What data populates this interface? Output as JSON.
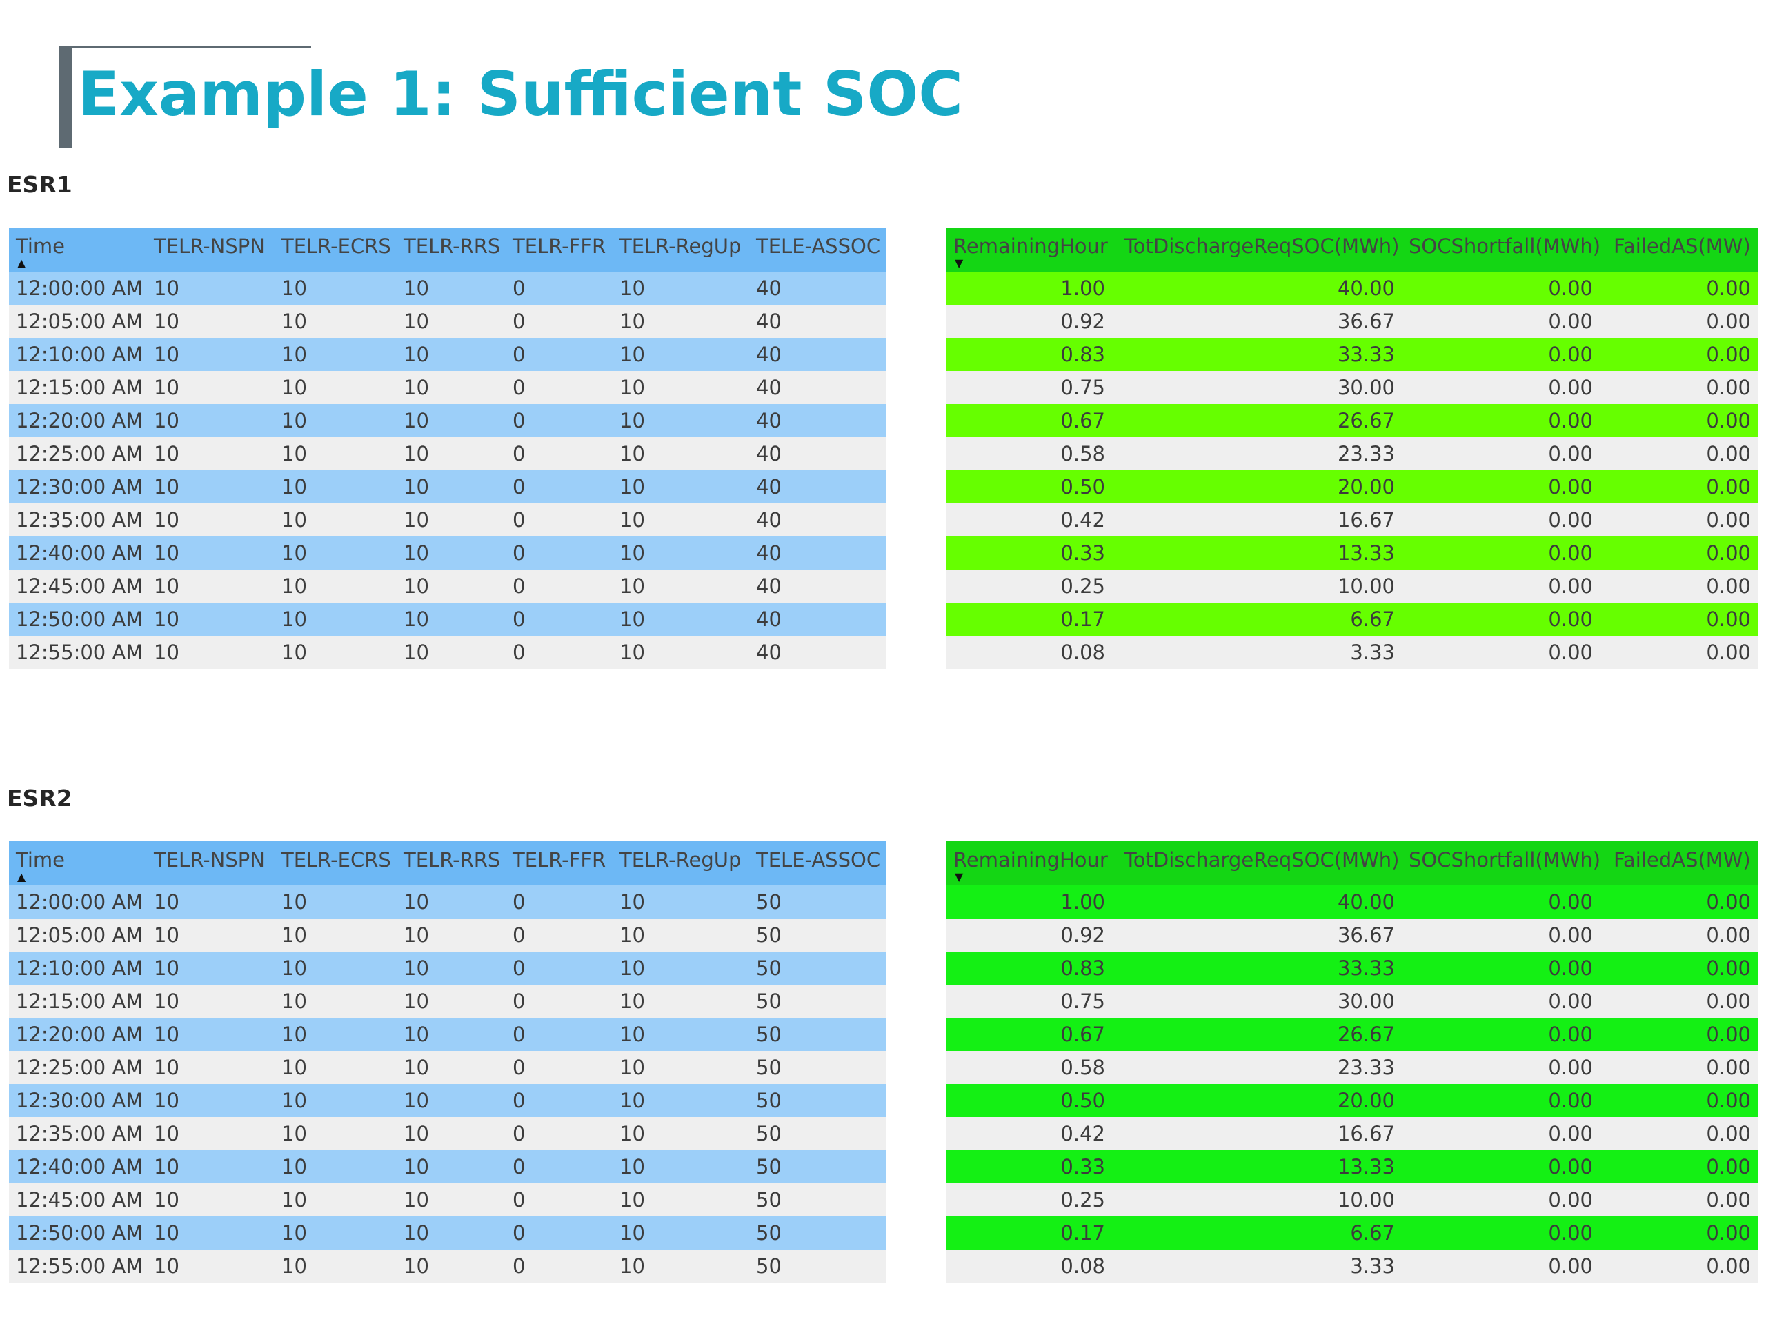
{
  "title": "Example 1: Sufficient SOC",
  "colors": {
    "title": "#17a9c6",
    "left_header": "#6db8f5",
    "left_alt_row": "#9ccff9",
    "plain_row": "#efefef",
    "right_header": "#14d614",
    "esr1_alt_row": "#66ff00",
    "esr2_alt_row": "#14f014"
  },
  "left_columns": [
    "Time",
    "TELR-NSPN",
    "TELR-ECRS",
    "TELR-RRS",
    "TELR-FFR",
    "TELR-RegUp",
    "TELE-ASSOC"
  ],
  "right_columns": [
    "RemainingHour",
    "TotDischargeReqSOC(MWh)",
    "SOCShortfall(MWh)",
    "FailedAS(MW)"
  ],
  "sections": [
    {
      "label": "ESR1",
      "left_rows": [
        [
          "12:00:00 AM",
          "10",
          "10",
          "10",
          "0",
          "10",
          "40"
        ],
        [
          "12:05:00 AM",
          "10",
          "10",
          "10",
          "0",
          "10",
          "40"
        ],
        [
          "12:10:00 AM",
          "10",
          "10",
          "10",
          "0",
          "10",
          "40"
        ],
        [
          "12:15:00 AM",
          "10",
          "10",
          "10",
          "0",
          "10",
          "40"
        ],
        [
          "12:20:00 AM",
          "10",
          "10",
          "10",
          "0",
          "10",
          "40"
        ],
        [
          "12:25:00 AM",
          "10",
          "10",
          "10",
          "0",
          "10",
          "40"
        ],
        [
          "12:30:00 AM",
          "10",
          "10",
          "10",
          "0",
          "10",
          "40"
        ],
        [
          "12:35:00 AM",
          "10",
          "10",
          "10",
          "0",
          "10",
          "40"
        ],
        [
          "12:40:00 AM",
          "10",
          "10",
          "10",
          "0",
          "10",
          "40"
        ],
        [
          "12:45:00 AM",
          "10",
          "10",
          "10",
          "0",
          "10",
          "40"
        ],
        [
          "12:50:00 AM",
          "10",
          "10",
          "10",
          "0",
          "10",
          "40"
        ],
        [
          "12:55:00 AM",
          "10",
          "10",
          "10",
          "0",
          "10",
          "40"
        ]
      ],
      "right_rows": [
        [
          "1.00",
          "40.00",
          "0.00",
          "0.00"
        ],
        [
          "0.92",
          "36.67",
          "0.00",
          "0.00"
        ],
        [
          "0.83",
          "33.33",
          "0.00",
          "0.00"
        ],
        [
          "0.75",
          "30.00",
          "0.00",
          "0.00"
        ],
        [
          "0.67",
          "26.67",
          "0.00",
          "0.00"
        ],
        [
          "0.58",
          "23.33",
          "0.00",
          "0.00"
        ],
        [
          "0.50",
          "20.00",
          "0.00",
          "0.00"
        ],
        [
          "0.42",
          "16.67",
          "0.00",
          "0.00"
        ],
        [
          "0.33",
          "13.33",
          "0.00",
          "0.00"
        ],
        [
          "0.25",
          "10.00",
          "0.00",
          "0.00"
        ],
        [
          "0.17",
          "6.67",
          "0.00",
          "0.00"
        ],
        [
          "0.08",
          "3.33",
          "0.00",
          "0.00"
        ]
      ]
    },
    {
      "label": "ESR2",
      "left_rows": [
        [
          "12:00:00 AM",
          "10",
          "10",
          "10",
          "0",
          "10",
          "50"
        ],
        [
          "12:05:00 AM",
          "10",
          "10",
          "10",
          "0",
          "10",
          "50"
        ],
        [
          "12:10:00 AM",
          "10",
          "10",
          "10",
          "0",
          "10",
          "50"
        ],
        [
          "12:15:00 AM",
          "10",
          "10",
          "10",
          "0",
          "10",
          "50"
        ],
        [
          "12:20:00 AM",
          "10",
          "10",
          "10",
          "0",
          "10",
          "50"
        ],
        [
          "12:25:00 AM",
          "10",
          "10",
          "10",
          "0",
          "10",
          "50"
        ],
        [
          "12:30:00 AM",
          "10",
          "10",
          "10",
          "0",
          "10",
          "50"
        ],
        [
          "12:35:00 AM",
          "10",
          "10",
          "10",
          "0",
          "10",
          "50"
        ],
        [
          "12:40:00 AM",
          "10",
          "10",
          "10",
          "0",
          "10",
          "50"
        ],
        [
          "12:45:00 AM",
          "10",
          "10",
          "10",
          "0",
          "10",
          "50"
        ],
        [
          "12:50:00 AM",
          "10",
          "10",
          "10",
          "0",
          "10",
          "50"
        ],
        [
          "12:55:00 AM",
          "10",
          "10",
          "10",
          "0",
          "10",
          "50"
        ]
      ],
      "right_rows": [
        [
          "1.00",
          "40.00",
          "0.00",
          "0.00"
        ],
        [
          "0.92",
          "36.67",
          "0.00",
          "0.00"
        ],
        [
          "0.83",
          "33.33",
          "0.00",
          "0.00"
        ],
        [
          "0.75",
          "30.00",
          "0.00",
          "0.00"
        ],
        [
          "0.67",
          "26.67",
          "0.00",
          "0.00"
        ],
        [
          "0.58",
          "23.33",
          "0.00",
          "0.00"
        ],
        [
          "0.50",
          "20.00",
          "0.00",
          "0.00"
        ],
        [
          "0.42",
          "16.67",
          "0.00",
          "0.00"
        ],
        [
          "0.33",
          "13.33",
          "0.00",
          "0.00"
        ],
        [
          "0.25",
          "10.00",
          "0.00",
          "0.00"
        ],
        [
          "0.17",
          "6.67",
          "0.00",
          "0.00"
        ],
        [
          "0.08",
          "3.33",
          "0.00",
          "0.00"
        ]
      ]
    }
  ]
}
